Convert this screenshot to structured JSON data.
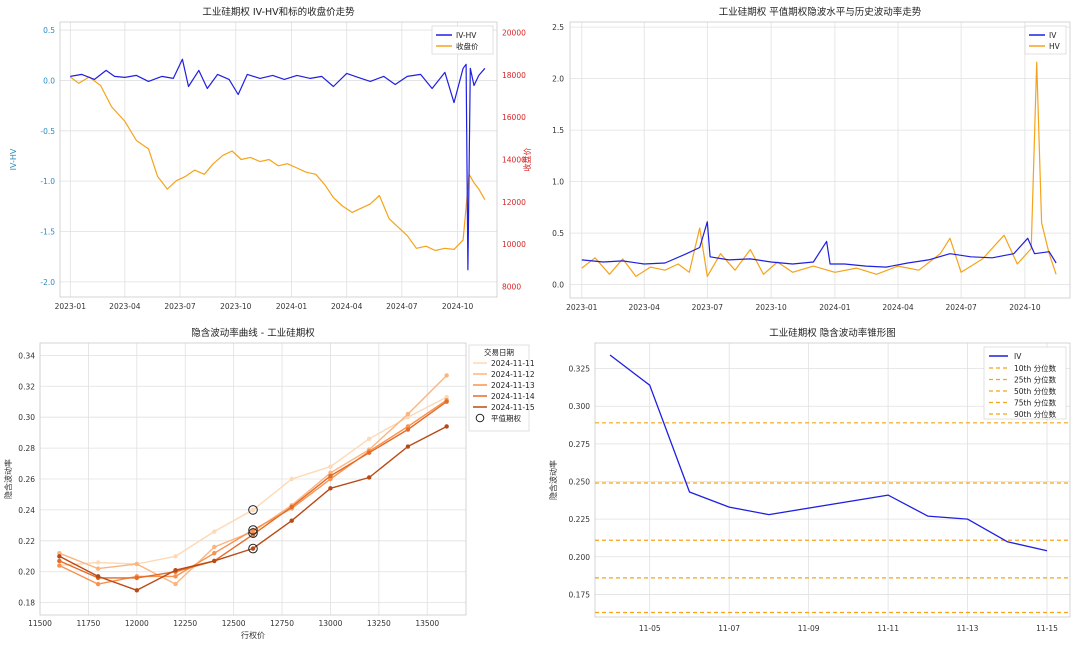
{
  "chart_data": [
    {
      "type": "line",
      "title": "工业硅期权 IV-HV和标的收盘价走势",
      "ylabel": "IV-HV",
      "y2label": "收盘价",
      "xlim": [
        "2022-12-15",
        "2024-12-05"
      ],
      "ylim": [
        -2.15,
        0.58
      ],
      "y2lim": [
        7500,
        20500
      ],
      "xticks": [
        "2023-01",
        "2023-04",
        "2023-07",
        "2023-10",
        "2024-01",
        "2024-04",
        "2024-07",
        "2024-10"
      ],
      "yticks": [
        "-2.0",
        "-1.5",
        "-1.0",
        "-0.5",
        "0.0",
        "0.5"
      ],
      "y2ticks": [
        "8000",
        "10000",
        "12000",
        "14000",
        "16000",
        "18000",
        "20000"
      ],
      "legend_position": "top-right",
      "grid": true,
      "series": [
        {
          "name": "IV-HV",
          "axis": "left",
          "color": "#1f1fe0",
          "points": [
            [
              "2023-01-01",
              0.04
            ],
            [
              "2023-01-20",
              0.06
            ],
            [
              "2023-02-10",
              0.01
            ],
            [
              "2023-03-01",
              0.1
            ],
            [
              "2023-03-15",
              0.04
            ],
            [
              "2023-04-01",
              0.03
            ],
            [
              "2023-04-20",
              0.05
            ],
            [
              "2023-05-10",
              -0.01
            ],
            [
              "2023-06-01",
              0.04
            ],
            [
              "2023-06-20",
              0.02
            ],
            [
              "2023-07-05",
              0.21
            ],
            [
              "2023-07-15",
              -0.06
            ],
            [
              "2023-08-01",
              0.1
            ],
            [
              "2023-08-15",
              -0.08
            ],
            [
              "2023-09-01",
              0.06
            ],
            [
              "2023-09-20",
              0.01
            ],
            [
              "2023-10-05",
              -0.14
            ],
            [
              "2023-10-20",
              0.06
            ],
            [
              "2023-11-10",
              0.02
            ],
            [
              "2023-12-01",
              0.05
            ],
            [
              "2023-12-20",
              0.01
            ],
            [
              "2024-01-10",
              0.05
            ],
            [
              "2024-02-01",
              0.02
            ],
            [
              "2024-02-20",
              0.04
            ],
            [
              "2024-03-10",
              -0.06
            ],
            [
              "2024-04-01",
              0.07
            ],
            [
              "2024-04-20",
              0.03
            ],
            [
              "2024-05-10",
              -0.01
            ],
            [
              "2024-06-01",
              0.04
            ],
            [
              "2024-06-20",
              -0.04
            ],
            [
              "2024-07-10",
              0.04
            ],
            [
              "2024-08-01",
              0.06
            ],
            [
              "2024-08-20",
              -0.08
            ],
            [
              "2024-09-10",
              0.08
            ],
            [
              "2024-09-25",
              -0.22
            ],
            [
              "2024-10-10",
              0.12
            ],
            [
              "2024-10-15",
              0.16
            ],
            [
              "2024-10-18",
              -1.88
            ],
            [
              "2024-10-22",
              0.12
            ],
            [
              "2024-10-28",
              -0.05
            ],
            [
              "2024-11-05",
              0.05
            ],
            [
              "2024-11-15",
              0.12
            ]
          ]
        },
        {
          "name": "收盘价",
          "axis": "right",
          "color": "#f5a31a",
          "points": [
            [
              "2023-01-01",
              17900
            ],
            [
              "2023-01-15",
              17600
            ],
            [
              "2023-02-01",
              17900
            ],
            [
              "2023-02-20",
              17500
            ],
            [
              "2023-03-10",
              16500
            ],
            [
              "2023-04-01",
              15800
            ],
            [
              "2023-04-20",
              14900
            ],
            [
              "2023-05-10",
              14500
            ],
            [
              "2023-05-25",
              13200
            ],
            [
              "2023-06-10",
              12600
            ],
            [
              "2023-06-25",
              13000
            ],
            [
              "2023-07-10",
              13200
            ],
            [
              "2023-07-25",
              13500
            ],
            [
              "2023-08-10",
              13300
            ],
            [
              "2023-08-25",
              13800
            ],
            [
              "2023-09-10",
              14200
            ],
            [
              "2023-09-25",
              14400
            ],
            [
              "2023-10-10",
              14000
            ],
            [
              "2023-10-25",
              14100
            ],
            [
              "2023-11-10",
              13900
            ],
            [
              "2023-11-25",
              14000
            ],
            [
              "2023-12-10",
              13700
            ],
            [
              "2023-12-25",
              13800
            ],
            [
              "2024-01-10",
              13600
            ],
            [
              "2024-01-25",
              13400
            ],
            [
              "2024-02-10",
              13300
            ],
            [
              "2024-02-25",
              12800
            ],
            [
              "2024-03-10",
              12200
            ],
            [
              "2024-03-25",
              11800
            ],
            [
              "2024-04-10",
              11500
            ],
            [
              "2024-04-25",
              11700
            ],
            [
              "2024-05-10",
              11900
            ],
            [
              "2024-05-25",
              12300
            ],
            [
              "2024-06-10",
              11200
            ],
            [
              "2024-06-25",
              10800
            ],
            [
              "2024-07-10",
              10400
            ],
            [
              "2024-07-25",
              9800
            ],
            [
              "2024-08-10",
              9900
            ],
            [
              "2024-08-25",
              9700
            ],
            [
              "2024-09-10",
              9800
            ],
            [
              "2024-09-25",
              9750
            ],
            [
              "2024-10-10",
              10200
            ],
            [
              "2024-10-20",
              13300
            ],
            [
              "2024-10-28",
              12900
            ],
            [
              "2024-11-05",
              12600
            ],
            [
              "2024-11-15",
              12100
            ]
          ]
        }
      ]
    },
    {
      "type": "line",
      "title": "工业硅期权 平值期权隐波水平与历史波动率走势",
      "xlim": [
        "2022-12-15",
        "2024-12-05"
      ],
      "ylim": [
        -0.13,
        2.55
      ],
      "xticks": [
        "2023-01",
        "2023-04",
        "2023-07",
        "2023-10",
        "2024-01",
        "2024-04",
        "2024-07",
        "2024-10"
      ],
      "yticks": [
        "0.0",
        "0.5",
        "1.0",
        "1.5",
        "2.0",
        "2.5"
      ],
      "legend_position": "top-right",
      "grid": true,
      "series": [
        {
          "name": "IV",
          "color": "#1f1fe0",
          "points": [
            [
              "2023-01-01",
              0.24
            ],
            [
              "2023-02-01",
              0.22
            ],
            [
              "2023-03-01",
              0.23
            ],
            [
              "2023-04-01",
              0.2
            ],
            [
              "2023-05-01",
              0.21
            ],
            [
              "2023-06-01",
              0.3
            ],
            [
              "2023-06-20",
              0.36
            ],
            [
              "2023-07-01",
              0.61
            ],
            [
              "2023-07-05",
              0.27
            ],
            [
              "2023-08-01",
              0.24
            ],
            [
              "2023-09-01",
              0.25
            ],
            [
              "2023-10-01",
              0.22
            ],
            [
              "2023-11-01",
              0.2
            ],
            [
              "2023-12-01",
              0.22
            ],
            [
              "2023-12-20",
              0.42
            ],
            [
              "2023-12-25",
              0.2
            ],
            [
              "2024-01-15",
              0.2
            ],
            [
              "2024-02-15",
              0.18
            ],
            [
              "2024-03-15",
              0.17
            ],
            [
              "2024-04-15",
              0.21
            ],
            [
              "2024-05-15",
              0.24
            ],
            [
              "2024-06-15",
              0.3
            ],
            [
              "2024-07-15",
              0.27
            ],
            [
              "2024-08-15",
              0.26
            ],
            [
              "2024-09-15",
              0.3
            ],
            [
              "2024-10-05",
              0.45
            ],
            [
              "2024-10-15",
              0.3
            ],
            [
              "2024-11-05",
              0.32
            ],
            [
              "2024-11-15",
              0.21
            ]
          ]
        },
        {
          "name": "HV",
          "color": "#f5a31a",
          "points": [
            [
              "2023-01-01",
              0.16
            ],
            [
              "2023-01-20",
              0.26
            ],
            [
              "2023-02-10",
              0.1
            ],
            [
              "2023-03-01",
              0.25
            ],
            [
              "2023-03-20",
              0.08
            ],
            [
              "2023-04-10",
              0.17
            ],
            [
              "2023-05-01",
              0.14
            ],
            [
              "2023-05-20",
              0.2
            ],
            [
              "2023-06-05",
              0.12
            ],
            [
              "2023-06-20",
              0.55
            ],
            [
              "2023-07-01",
              0.08
            ],
            [
              "2023-07-20",
              0.3
            ],
            [
              "2023-08-10",
              0.14
            ],
            [
              "2023-09-01",
              0.34
            ],
            [
              "2023-09-20",
              0.1
            ],
            [
              "2023-10-10",
              0.22
            ],
            [
              "2023-11-01",
              0.12
            ],
            [
              "2023-12-01",
              0.18
            ],
            [
              "2024-01-01",
              0.12
            ],
            [
              "2024-02-01",
              0.16
            ],
            [
              "2024-03-01",
              0.1
            ],
            [
              "2024-04-01",
              0.18
            ],
            [
              "2024-05-01",
              0.14
            ],
            [
              "2024-06-01",
              0.3
            ],
            [
              "2024-06-15",
              0.45
            ],
            [
              "2024-07-01",
              0.12
            ],
            [
              "2024-08-01",
              0.25
            ],
            [
              "2024-09-01",
              0.48
            ],
            [
              "2024-09-20",
              0.2
            ],
            [
              "2024-10-10",
              0.35
            ],
            [
              "2024-10-18",
              2.16
            ],
            [
              "2024-10-25",
              0.6
            ],
            [
              "2024-11-05",
              0.3
            ],
            [
              "2024-11-15",
              0.1
            ]
          ]
        }
      ]
    },
    {
      "type": "line",
      "title": "隐含波动率曲线 - 工业硅期权",
      "xlabel": "行权价",
      "ylabel": "隐含波动率",
      "xlim": [
        11500,
        13700
      ],
      "ylim": [
        0.172,
        0.348
      ],
      "xticks": [
        "11500",
        "11750",
        "12000",
        "12250",
        "12500",
        "12750",
        "13000",
        "13250",
        "13500"
      ],
      "yticks": [
        "0.18",
        "0.20",
        "0.22",
        "0.24",
        "0.26",
        "0.28",
        "0.30",
        "0.32",
        "0.34"
      ],
      "legend_title": "交易日期",
      "legend_position": "top-right (outside)",
      "atm_marker_label": "平值期权",
      "atm_strike": 12600,
      "grid": true,
      "series": [
        {
          "name": "2024-11-11",
          "color": "#fdd9b5",
          "x": [
            11600,
            11800,
            12000,
            12200,
            12400,
            12600,
            12800,
            13000,
            13200,
            13400,
            13600
          ],
          "y": [
            0.204,
            0.206,
            0.205,
            0.21,
            0.226,
            0.24,
            0.26,
            0.268,
            0.286,
            0.3,
            0.313
          ]
        },
        {
          "name": "2024-11-12",
          "color": "#fcb47f",
          "x": [
            11600,
            11800,
            12000,
            12200,
            12400,
            12600,
            12800,
            13000,
            13200,
            13400,
            13600
          ],
          "y": [
            0.212,
            0.202,
            0.205,
            0.192,
            0.216,
            0.226,
            0.243,
            0.264,
            0.279,
            0.302,
            0.327
          ]
        },
        {
          "name": "2024-11-13",
          "color": "#f8924e",
          "x": [
            11600,
            11800,
            12000,
            12200,
            12400,
            12600,
            12800,
            13000,
            13200,
            13400,
            13600
          ],
          "y": [
            0.204,
            0.192,
            0.197,
            0.197,
            0.212,
            0.227,
            0.241,
            0.26,
            0.278,
            0.294,
            0.311
          ]
        },
        {
          "name": "2024-11-14",
          "color": "#e36c2a",
          "x": [
            11600,
            11800,
            12000,
            12200,
            12400,
            12600,
            12800,
            13000,
            13200,
            13400,
            13600
          ],
          "y": [
            0.207,
            0.196,
            0.196,
            0.2,
            0.207,
            0.224,
            0.242,
            0.262,
            0.277,
            0.292,
            0.31
          ]
        },
        {
          "name": "2024-11-15",
          "color": "#b84a16",
          "x": [
            11600,
            11800,
            12000,
            12200,
            12400,
            12600,
            12800,
            13000,
            13200,
            13400,
            13600
          ],
          "y": [
            0.21,
            0.197,
            0.188,
            0.201,
            0.207,
            0.215,
            0.233,
            0.254,
            0.261,
            0.281,
            0.294
          ]
        }
      ],
      "atm_points": [
        0.24,
        0.227,
        0.225,
        0.215
      ]
    },
    {
      "type": "line",
      "title": "工业硅期权 隐含波动率锥形图",
      "ylabel": "隐含波动率",
      "xlim": [
        "11-04",
        "11-15"
      ],
      "ylim": [
        0.16,
        0.342
      ],
      "xticks": [
        "11-05",
        "11-07",
        "11-09",
        "11-11",
        "11-13",
        "11-15"
      ],
      "yticks": [
        "0.175",
        "0.200",
        "0.225",
        "0.250",
        "0.275",
        "0.300",
        "0.325"
      ],
      "legend_position": "top-right",
      "grid": true,
      "series": [
        {
          "name": "IV",
          "color": "#1f1fe0",
          "x": [
            "11-04",
            "11-05",
            "11-06",
            "11-07",
            "11-08",
            "11-11",
            "11-12",
            "11-13",
            "11-14",
            "11-15"
          ],
          "y": [
            0.334,
            0.314,
            0.243,
            0.233,
            0.228,
            0.241,
            0.227,
            0.225,
            0.21,
            0.204
          ]
        }
      ],
      "percentiles": [
        {
          "name": "10th 分位数",
          "value": 0.163,
          "color": "#f5a31a"
        },
        {
          "name": "25th 分位数",
          "value": 0.186,
          "color": "#f5a31a"
        },
        {
          "name": "50th 分位数",
          "value": 0.211,
          "color": "#f5a31a"
        },
        {
          "name": "75th 分位数",
          "value": 0.249,
          "color": "#f5a31a"
        },
        {
          "name": "90th 分位数",
          "value": 0.289,
          "color": "#f5a31a"
        }
      ]
    }
  ]
}
